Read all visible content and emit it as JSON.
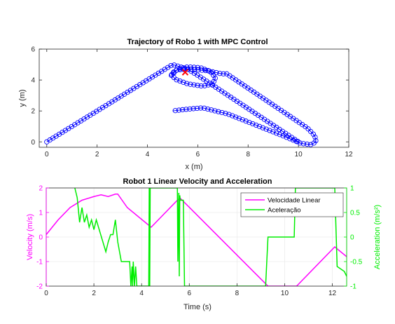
{
  "colors": {
    "trajectory": "#0000ff",
    "robot_marker": "#ff0000",
    "velocity": "#ff00ff",
    "acceleration": "#00ee00",
    "axis": "#262626"
  },
  "chart_data": [
    {
      "type": "line",
      "title": "Trajectory of Robo 1 with MPC Control",
      "xlabel": "x (m)",
      "ylabel": "y (m)",
      "xlim": [
        -0.3,
        12
      ],
      "ylim": [
        -0.35,
        6
      ],
      "xticks": [
        0,
        2,
        4,
        6,
        8,
        10,
        12
      ],
      "yticks": [
        0,
        2,
        4,
        6
      ],
      "marker": "circle",
      "grid": false,
      "series": [
        {
          "x": [
            0.0,
            5.0,
            5.6,
            6.0,
            10.0
          ],
          "y": [
            0.0,
            5.0,
            4.7,
            4.3,
            0.0
          ]
        },
        {
          "x": [
            4.95,
            5.2,
            5.6,
            6.1,
            6.5,
            6.7,
            6.6,
            6.2,
            5.6,
            5.1,
            4.95,
            5.15,
            5.7,
            6.4,
            6.95,
            7.15
          ],
          "y": [
            4.3,
            4.7,
            4.85,
            4.8,
            4.55,
            4.15,
            3.75,
            3.6,
            3.75,
            4.05,
            4.4,
            4.65,
            4.7,
            4.6,
            4.4,
            4.4
          ]
        },
        {
          "x": [
            7.15,
            9.85,
            10.35,
            10.65,
            10.7,
            10.5,
            10.1,
            9.3,
            7.2,
            6.2,
            5.5,
            5.0
          ],
          "y": [
            4.4,
            1.45,
            0.9,
            0.4,
            0.0,
            -0.18,
            -0.1,
            0.45,
            1.8,
            2.2,
            2.1,
            2.0
          ]
        }
      ],
      "marker_point": {
        "x": 5.5,
        "y": 4.5
      }
    },
    {
      "type": "line",
      "title": "Robot 1 Linear Velocity and Acceleration",
      "xlabel": "Time (s)",
      "ylabel": "Velocity (m/s)",
      "y2label": "Acceleration (m/s²)",
      "xlim": [
        0,
        12.6
      ],
      "ylim": [
        -2,
        2
      ],
      "y2lim": [
        -1,
        1
      ],
      "xticks": [
        0,
        2,
        4,
        6,
        8,
        10,
        12
      ],
      "yticks": [
        -2,
        -1,
        0,
        1,
        2
      ],
      "y2ticks": [
        -1,
        -0.5,
        0,
        0.5,
        1
      ],
      "y2ticklabels": [
        "-1",
        "-0.5",
        "0",
        "0.5",
        "1"
      ],
      "legend": {
        "position": "top-right",
        "entries": [
          "Velocidade Linear",
          "Aceleração"
        ]
      },
      "series": [
        {
          "name": "Velocidade Linear",
          "axis": "left",
          "x": [
            0,
            0.5,
            1.0,
            1.5,
            2.0,
            2.3,
            2.6,
            2.9,
            3.0,
            3.4,
            4.4,
            5.6,
            9.3,
            10.5,
            12.1,
            12.6
          ],
          "y": [
            0.1,
            0.7,
            1.2,
            1.5,
            1.65,
            1.72,
            1.65,
            1.75,
            1.75,
            1.2,
            0.4,
            1.6,
            -2.0,
            -2.0,
            -0.4,
            -0.8
          ]
        },
        {
          "name": "Aceleração",
          "axis": "right",
          "x": [
            1.2,
            1.3,
            1.4,
            1.5,
            1.6,
            1.7,
            1.8,
            1.9,
            2.0,
            2.1,
            2.5,
            2.6,
            2.7,
            2.8,
            2.9,
            3.0,
            3.15,
            3.5,
            3.55,
            3.6,
            3.62,
            3.65,
            3.7,
            3.75,
            3.8,
            4.3,
            4.32,
            4.34,
            4.36,
            5.5,
            5.52,
            5.56,
            5.58,
            5.6,
            5.62,
            5.75,
            5.8,
            6.0,
            9.2,
            9.3,
            9.45,
            10.4,
            10.45,
            10.5,
            12.1,
            12.2,
            12.5,
            12.6
          ],
          "y": [
            1.0,
            0.8,
            0.3,
            0.6,
            0.3,
            0.45,
            0.2,
            0.35,
            0.15,
            0.35,
            -0.3,
            -0.1,
            0.05,
            0.05,
            0.35,
            -0.1,
            -0.5,
            -0.5,
            -1.0,
            -0.6,
            -1.0,
            -0.5,
            -1.0,
            -0.6,
            -1.0,
            -1.0,
            1.0,
            -1.0,
            1.0,
            1.0,
            -0.5,
            0.9,
            -0.8,
            0.85,
            0.75,
            0.75,
            -1.0,
            -1.0,
            -1.0,
            0.0,
            0.0,
            0.0,
            1.0,
            1.0,
            1.0,
            -0.6,
            -0.7,
            -0.8
          ]
        }
      ]
    }
  ]
}
